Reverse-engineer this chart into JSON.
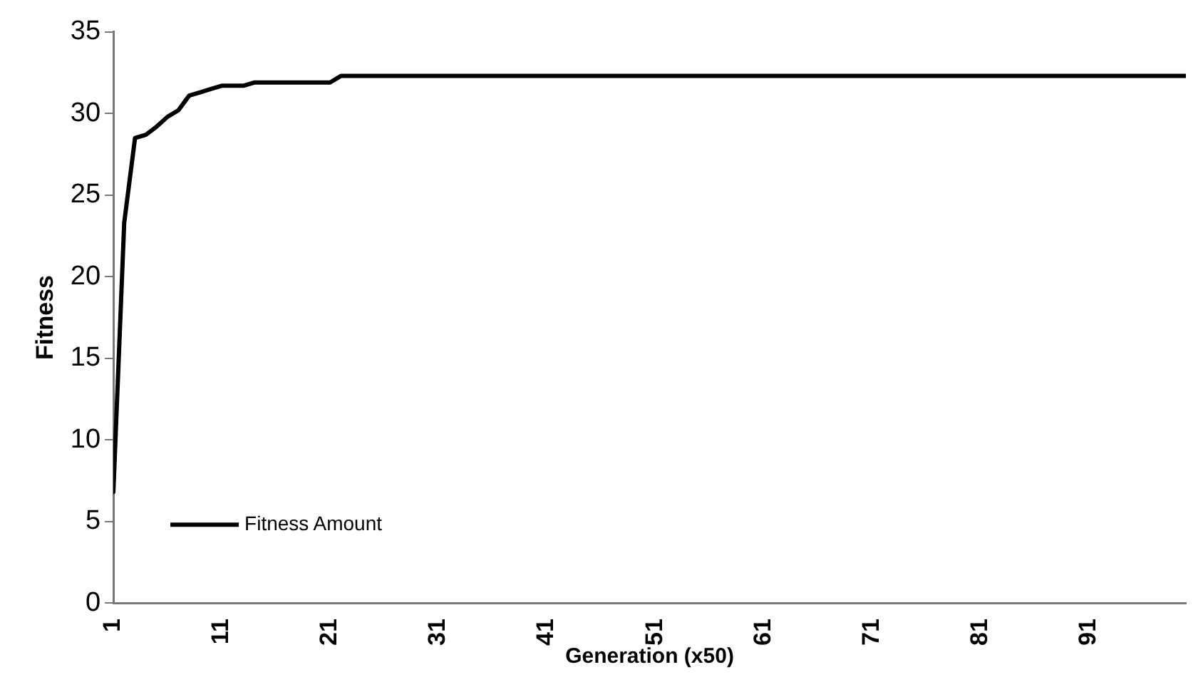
{
  "chart_data": {
    "type": "line",
    "xlabel": "Generation (x50)",
    "ylabel": "Fitness",
    "x": [
      1,
      2,
      3,
      4,
      5,
      6,
      7,
      8,
      9,
      10,
      11,
      12,
      13,
      14,
      15,
      16,
      17,
      18,
      19,
      20,
      21,
      22,
      100
    ],
    "series": [
      {
        "name": "Fitness Amount",
        "color": "#000000",
        "values": [
          6.8,
          23.3,
          28.5,
          28.7,
          29.2,
          29.8,
          30.2,
          31.1,
          31.3,
          31.5,
          31.7,
          31.7,
          31.7,
          31.9,
          31.9,
          31.9,
          31.9,
          31.9,
          31.9,
          31.9,
          31.9,
          32.3,
          32.3
        ]
      }
    ],
    "xlim": [
      1,
      100
    ],
    "xticks": [
      1,
      11,
      21,
      31,
      41,
      51,
      61,
      71,
      81,
      91
    ],
    "ylim": [
      0,
      35
    ],
    "yticks": [
      0,
      5,
      10,
      15,
      20,
      25,
      30,
      35
    ],
    "grid": false,
    "legend": "bottom left",
    "marker": "none",
    "line_style": "solid"
  }
}
